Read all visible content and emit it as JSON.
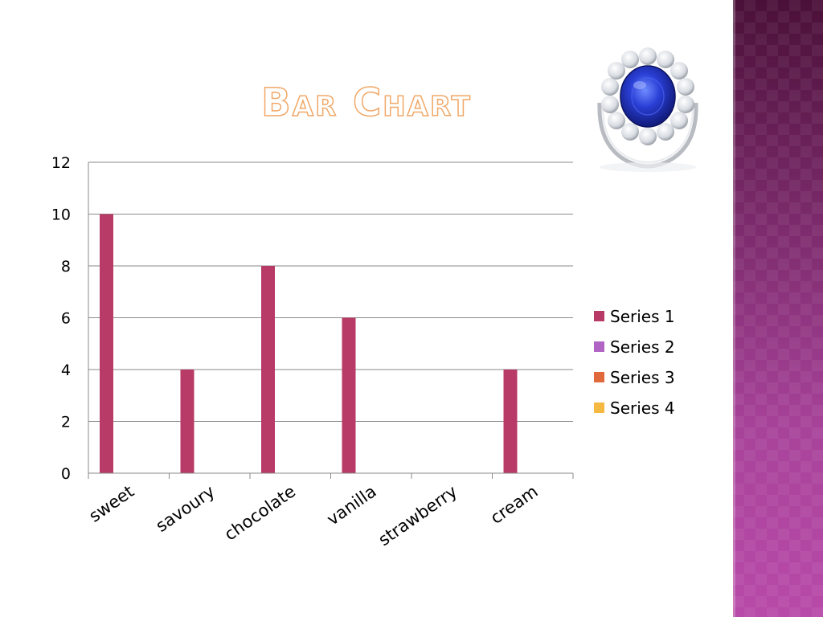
{
  "slide": {
    "title": "Bar Chart",
    "side_band_color": "#8a3278",
    "image_icon": "sapphire-ring"
  },
  "chart_data": {
    "type": "bar",
    "categories": [
      "sweet",
      "savoury",
      "chocolate",
      "vanilla",
      "strawberry",
      "cream"
    ],
    "series": [
      {
        "name": "Series 1",
        "values": [
          10,
          4,
          8,
          6,
          0,
          4
        ],
        "color": "#b83a66"
      },
      {
        "name": "Series 2",
        "values": [
          0,
          0,
          0,
          0,
          0,
          0
        ],
        "color": "#b064c4"
      },
      {
        "name": "Series 3",
        "values": [
          0,
          0,
          0,
          0,
          0,
          0
        ],
        "color": "#e06a3c"
      },
      {
        "name": "Series 4",
        "values": [
          0,
          0,
          0,
          0,
          0,
          0
        ],
        "color": "#f5b840"
      }
    ],
    "ylim": [
      0,
      12
    ],
    "yticks": [
      0,
      2,
      4,
      6,
      8,
      10,
      12
    ],
    "grid": true,
    "legend": "right"
  }
}
